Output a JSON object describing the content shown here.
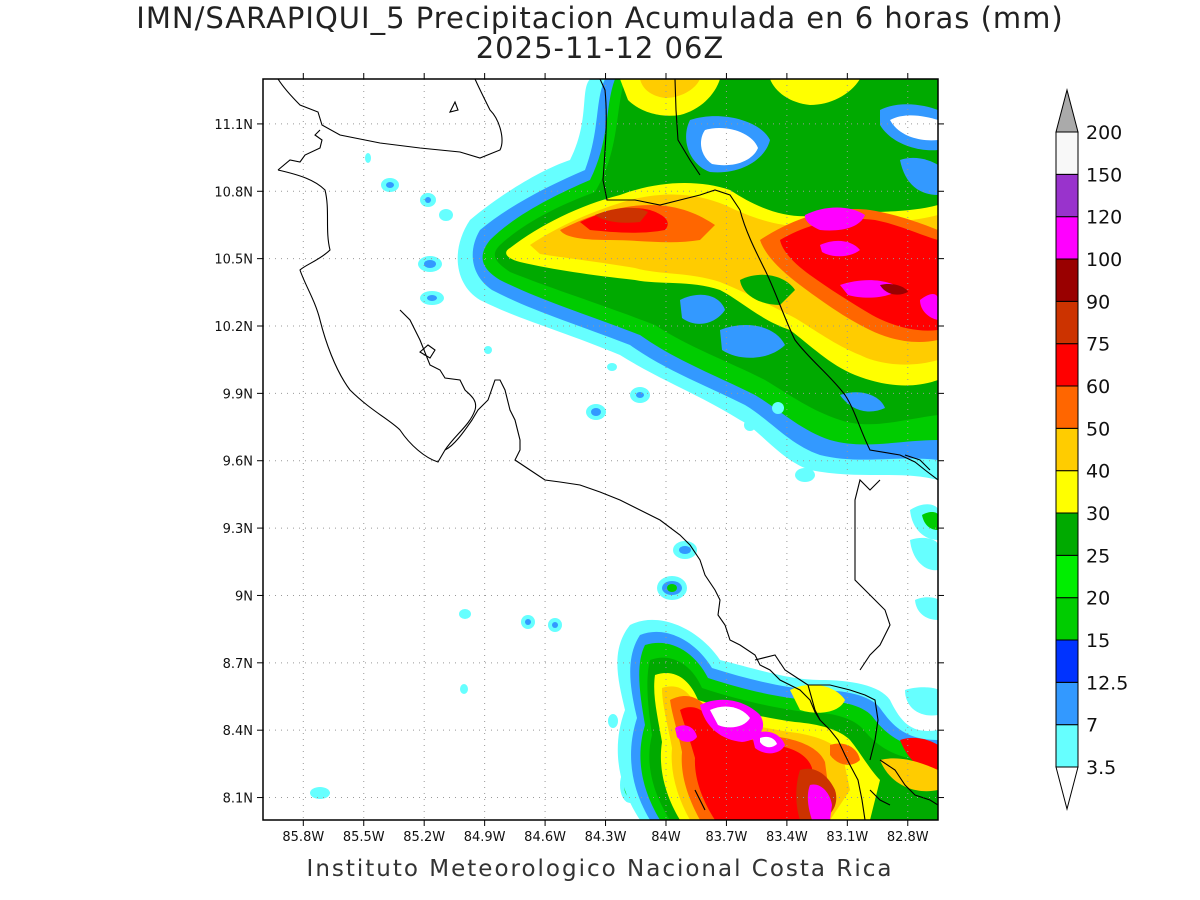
{
  "title": {
    "line1": "IMN/SARAPIQUI_5 Precipitacion Acumulada en 6 horas (mm)",
    "line2": "2025-11-12 06Z"
  },
  "credit": "Instituto Meteorologico Nacional Costa Rica",
  "map": {
    "lon_range": [
      -86.0,
      -82.65
    ],
    "lat_range": [
      8.0,
      11.3
    ],
    "lon_ticks": [
      "85.8W",
      "85.5W",
      "85.2W",
      "84.9W",
      "84.6W",
      "84.3W",
      "84W",
      "83.7W",
      "83.4W",
      "83.1W",
      "82.8W"
    ],
    "lat_ticks": [
      "11.1N",
      "10.8N",
      "10.5N",
      "10.2N",
      "9.9N",
      "9.6N",
      "9.3N",
      "9N",
      "8.7N",
      "8.4N",
      "8.1N"
    ],
    "gridlines": "dotted"
  },
  "colorbar": {
    "labels": [
      "3.5",
      "7",
      "12.5",
      "15",
      "20",
      "25",
      "30",
      "40",
      "50",
      "60",
      "75",
      "90",
      "100",
      "120",
      "150",
      "200"
    ],
    "colors": [
      "#66ffff",
      "#3399ff",
      "#0033ff",
      "#00cc00",
      "#00ee00",
      "#00aa00",
      "#ffff00",
      "#ffcc00",
      "#ff6600",
      "#ff0000",
      "#cc3300",
      "#990000",
      "#ff00ff",
      "#9933cc",
      "#f8f8f8"
    ],
    "over_arrow_color": "#aaaaaa",
    "under_arrow_color": "#ffffff"
  }
}
